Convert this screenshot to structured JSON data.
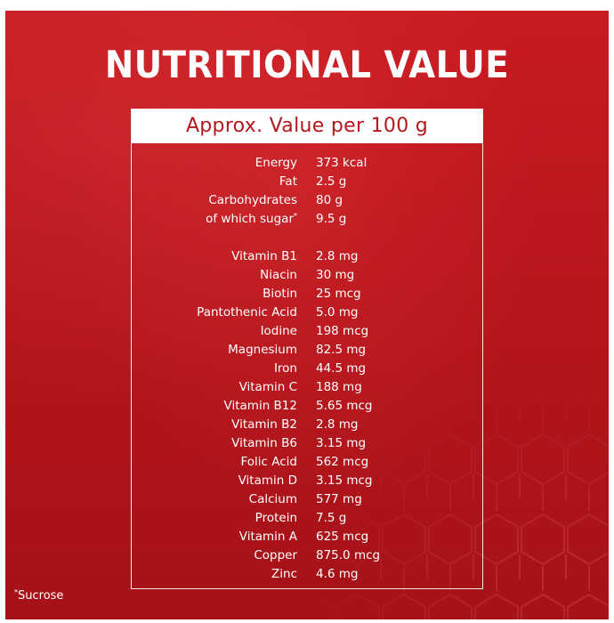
{
  "title": "NUTRITIONAL VALUE",
  "panel": {
    "header": "Approx. Value per 100 g",
    "group1": [
      {
        "label": "Energy",
        "value": "373 kcal"
      },
      {
        "label": "Fat",
        "value": "2.5 g"
      },
      {
        "label": "Carbohydrates",
        "value": "80 g"
      },
      {
        "label": "of which sugar",
        "marker": "*",
        "value": "9.5 g"
      }
    ],
    "group2": [
      {
        "label": "Vitamin B1",
        "value": "2.8 mg"
      },
      {
        "label": "Niacin",
        "value": "30 mg"
      },
      {
        "label": "Biotin",
        "value": "25 mcg"
      },
      {
        "label": "Pantothenic Acid",
        "value": "5.0 mg"
      },
      {
        "label": "Iodine",
        "value": "198 mcg"
      },
      {
        "label": "Magnesium",
        "value": "82.5 mg"
      },
      {
        "label": "Iron",
        "value": "44.5 mg"
      },
      {
        "label": "Vitamin C",
        "value": "188 mg"
      },
      {
        "label": "Vitamin B12",
        "value": "5.65 mcg"
      },
      {
        "label": "Vitamin B2",
        "value": "2.8 mg"
      },
      {
        "label": "Vitamin B6",
        "value": "3.15 mg"
      },
      {
        "label": "Folic Acid",
        "value": "562 mcg"
      },
      {
        "label": "Vitamin D",
        "value": "3.15 mcg"
      },
      {
        "label": "Calcium",
        "value": "577 mg"
      },
      {
        "label": "Protein",
        "value": "7.5 g"
      },
      {
        "label": "Vitamin A",
        "value": "625 mcg"
      },
      {
        "label": "Copper",
        "value": "875.0 mcg"
      },
      {
        "label": "Zinc",
        "value": "4.6 mg"
      }
    ]
  },
  "footnote": {
    "marker": "*",
    "text": "Sucrose"
  },
  "colors": {
    "background": "#b7151c",
    "header_text": "#b5171d",
    "text": "#ffffff"
  }
}
